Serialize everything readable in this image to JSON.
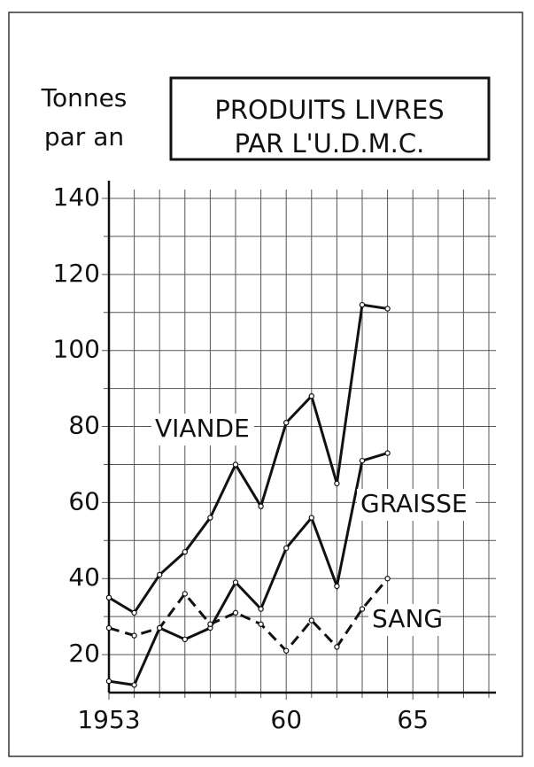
{
  "chart_data": {
    "type": "line",
    "title_lines": [
      "PRODUITS LIVRES",
      "PAR L'U.D.M.C."
    ],
    "y_label_lines": [
      "Tonnes",
      "par an"
    ],
    "x": [
      1953,
      1954,
      1955,
      1956,
      1957,
      1958,
      1959,
      1960,
      1961,
      1962,
      1963,
      1964
    ],
    "series": [
      {
        "name": "VIANDE",
        "color": "#111111",
        "style": "solid",
        "values": [
          35,
          31,
          41,
          47,
          56,
          70,
          59,
          81,
          88,
          65,
          112,
          111
        ]
      },
      {
        "name": "GRAISSE",
        "color": "#111111",
        "style": "solid",
        "values": [
          13,
          12,
          27,
          24,
          27,
          39,
          32,
          48,
          56,
          38,
          71,
          73
        ]
      },
      {
        "name": "SANG",
        "color": "#111111",
        "style": "dashed",
        "values": [
          27,
          25,
          27,
          36,
          28,
          31,
          28,
          21,
          29,
          22,
          32,
          40
        ]
      }
    ],
    "xlim": [
      1953,
      1968
    ],
    "xticks": [
      {
        "value": 1953,
        "label": "1953"
      },
      {
        "value": 1960,
        "label": "60"
      },
      {
        "value": 1965,
        "label": "65"
      }
    ],
    "minor_xticks": [
      1954,
      1955,
      1956,
      1957,
      1958,
      1959,
      1961,
      1962,
      1963,
      1964,
      1966,
      1967,
      1968
    ],
    "ylim": [
      10,
      140
    ],
    "yticks": [
      20,
      40,
      60,
      80,
      100,
      120,
      140
    ],
    "minor_yticks": [
      30,
      50,
      70,
      90,
      110,
      130
    ],
    "grid": true
  }
}
